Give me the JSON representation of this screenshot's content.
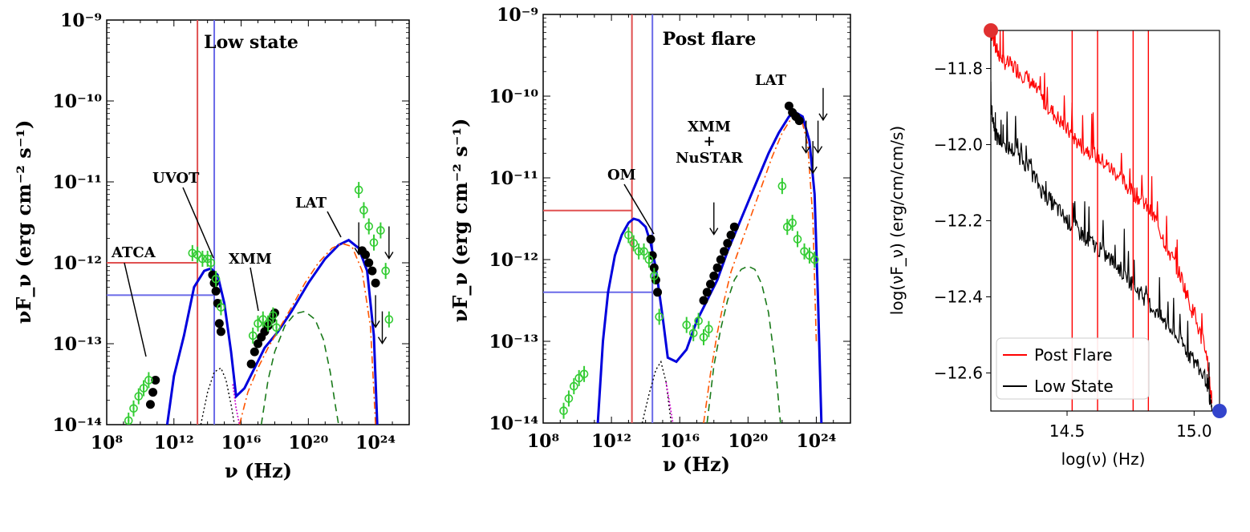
{
  "colors": {
    "model_total": "#0000dd",
    "sync_line": "#e05050",
    "peak_line": "#6a6ae8",
    "archival": "#33cc33",
    "ssc": "#ff5500",
    "ec": "#1a7a1a",
    "disk": "#000000",
    "host": "#cc00cc",
    "post_flare": "#ff0000",
    "low_state": "#000000",
    "marker_start": "#e03030",
    "marker_end": "#3344cc"
  },
  "chart_data": [
    {
      "type": "scatter",
      "panel": "left",
      "title": "Low state",
      "xlabel": "ν (Hz)",
      "ylabel": "νF_ν (erg cm⁻² s⁻¹)",
      "xscale": "log",
      "yscale": "log",
      "xlim": [
        100000000,
        1e+26
      ],
      "ylim": [
        1e-14,
        1e-09
      ],
      "x_tick_labels": [
        "10^8",
        "10^12",
        "10^16",
        "10^20",
        "10^24"
      ],
      "y_tick_labels": [
        "10^-14",
        "10^-13",
        "10^-12",
        "10^-11",
        "10^-10",
        "10^-9"
      ],
      "annotations": [
        "ATCA",
        "UVOT",
        "XMM",
        "LAT"
      ],
      "reference_lines": {
        "sync_peak_log_nu": 13.4,
        "sync_peak_log_flux": -12.0,
        "crossing_log_nu": 14.4,
        "crossing_log_flux": -12.4
      },
      "series": [
        {
          "name": "SED model (total)",
          "log_nu": [
            11.6,
            12.0,
            12.6,
            13.2,
            13.8,
            14.2,
            14.6,
            15.0,
            15.4,
            15.7,
            16.2,
            16.8,
            17.4,
            18.2,
            19.0,
            20.0,
            21.0,
            21.8,
            22.4,
            23.0,
            23.5,
            23.9,
            24.1
          ],
          "log_flux": [
            -14.0,
            -13.4,
            -12.9,
            -12.3,
            -12.1,
            -12.07,
            -12.15,
            -12.5,
            -13.1,
            -13.65,
            -13.55,
            -13.3,
            -13.05,
            -12.85,
            -12.6,
            -12.25,
            -11.95,
            -11.78,
            -11.72,
            -11.82,
            -12.1,
            -12.9,
            -14.0
          ]
        },
        {
          "name": "SSC (dash-dot)",
          "log_nu": [
            15.9,
            16.4,
            17.0,
            17.6,
            18.3,
            19.0,
            19.8,
            20.6,
            21.4,
            22.0,
            22.6,
            23.2,
            23.7,
            24.0
          ],
          "log_flux": [
            -14.0,
            -13.6,
            -13.3,
            -13.05,
            -12.8,
            -12.55,
            -12.25,
            -12.0,
            -11.82,
            -11.76,
            -11.8,
            -12.1,
            -12.8,
            -14.0
          ]
        },
        {
          "name": "EC (dashed)",
          "log_nu": [
            17.2,
            17.6,
            18.0,
            18.6,
            19.2,
            19.8,
            20.4,
            20.9,
            21.3,
            21.6,
            21.8
          ],
          "log_flux": [
            -14.0,
            -13.45,
            -13.1,
            -12.78,
            -12.63,
            -12.6,
            -12.7,
            -12.95,
            -13.35,
            -13.75,
            -14.0
          ]
        },
        {
          "name": "Disk (dotted)",
          "log_nu": [
            13.6,
            14.0,
            14.4,
            14.8,
            15.1,
            15.4,
            15.6
          ],
          "log_flux": [
            -14.0,
            -13.6,
            -13.35,
            -13.3,
            -13.45,
            -13.75,
            -14.0
          ]
        },
        {
          "name": "Host (dotted magenta)",
          "log_nu": [
            15.5,
            15.7,
            15.9
          ],
          "log_flux": [
            -13.5,
            -13.8,
            -14.0
          ]
        },
        {
          "name": "Observed (black)",
          "log_nu": [
            10.6,
            10.75,
            10.9,
            14.3,
            14.4,
            14.5,
            14.6,
            14.7,
            14.8,
            16.6,
            16.8,
            17.0,
            17.2,
            17.4,
            17.6,
            17.8,
            18.0,
            23.2,
            23.4,
            23.6,
            23.8,
            24.0
          ],
          "log_flux": [
            -13.75,
            -13.6,
            -13.45,
            -12.15,
            -12.25,
            -12.35,
            -12.5,
            -12.75,
            -12.85,
            -13.25,
            -13.1,
            -13.0,
            -12.92,
            -12.85,
            -12.78,
            -12.7,
            -12.62,
            -11.85,
            -11.9,
            -12.0,
            -12.1,
            -12.25
          ]
        },
        {
          "name": "Archival (green)",
          "log_nu": [
            9.3,
            9.6,
            9.9,
            10.2,
            10.5,
            13.1,
            13.4,
            13.7,
            14.0,
            14.2,
            14.5,
            14.8,
            16.7,
            17.0,
            17.3,
            17.6,
            17.9,
            18.1,
            23.0,
            23.3,
            23.6,
            23.9,
            24.3,
            24.6,
            24.8
          ],
          "log_flux": [
            -13.95,
            -13.8,
            -13.65,
            -13.55,
            -13.45,
            -11.88,
            -11.9,
            -11.95,
            -11.95,
            -12.0,
            -12.2,
            -12.55,
            -12.9,
            -12.75,
            -12.7,
            -12.75,
            -12.65,
            -12.8,
            -11.1,
            -11.35,
            -11.55,
            -11.75,
            -11.6,
            -12.1,
            -12.7
          ]
        },
        {
          "name": "Upper limits (LAT)",
          "log_nu": [
            23.0,
            24.0,
            24.4,
            24.8
          ],
          "log_flux": [
            -11.5,
            -12.4,
            -12.6,
            -11.55
          ]
        }
      ]
    },
    {
      "type": "scatter",
      "panel": "middle",
      "title": "Post flare",
      "xlabel": "ν (Hz)",
      "ylabel": "νF_ν (erg cm⁻² s⁻¹)",
      "xscale": "log",
      "yscale": "log",
      "xlim": [
        100000000,
        1e+26
      ],
      "ylim": [
        1e-14,
        1e-09
      ],
      "x_tick_labels": [
        "10^8",
        "10^12",
        "10^16",
        "10^20",
        "10^24"
      ],
      "y_tick_labels": [
        "10^-14",
        "10^-13",
        "10^-12",
        "10^-11",
        "10^-10",
        "10^-9"
      ],
      "annotations": [
        "OM",
        "XMM",
        "+",
        "NuSTAR",
        "LAT"
      ],
      "reference_lines": {
        "sync_peak_log_nu": 13.2,
        "sync_peak_log_flux": -11.4,
        "crossing_log_nu": 14.4,
        "crossing_log_flux": -12.4
      },
      "series": [
        {
          "name": "SED model (total)",
          "log_nu": [
            11.2,
            11.5,
            11.8,
            12.2,
            12.6,
            13.0,
            13.3,
            13.6,
            14.0,
            14.3,
            14.6,
            15.0,
            15.3,
            15.8,
            16.4,
            17.0,
            17.6,
            18.2,
            18.8,
            19.4,
            20.0,
            20.6,
            21.2,
            21.8,
            22.4,
            22.8,
            23.2,
            23.6,
            23.9,
            24.1,
            24.3
          ],
          "log_flux": [
            -14.0,
            -13.0,
            -12.4,
            -11.95,
            -11.7,
            -11.55,
            -11.5,
            -11.52,
            -11.6,
            -11.8,
            -12.1,
            -12.7,
            -13.2,
            -13.25,
            -13.1,
            -12.75,
            -12.5,
            -12.25,
            -11.9,
            -11.6,
            -11.3,
            -11.0,
            -10.7,
            -10.45,
            -10.25,
            -10.2,
            -10.25,
            -10.55,
            -11.2,
            -12.5,
            -14.0
          ]
        },
        {
          "name": "SSC (dash-dot)",
          "log_nu": [
            17.4,
            17.8,
            18.2,
            18.6,
            19.0,
            19.6,
            20.2,
            20.8,
            21.4,
            22.0,
            22.6,
            23.1,
            23.5,
            23.8,
            24.0
          ],
          "log_flux": [
            -14.0,
            -13.4,
            -12.9,
            -12.5,
            -12.15,
            -11.8,
            -11.45,
            -11.1,
            -10.75,
            -10.45,
            -10.25,
            -10.25,
            -10.6,
            -11.5,
            -13.0
          ]
        },
        {
          "name": "EC (dashed)",
          "log_nu": [
            17.6,
            18.0,
            18.4,
            18.8,
            19.2,
            19.6,
            20.0,
            20.4,
            20.8,
            21.2,
            21.6,
            21.9
          ],
          "log_flux": [
            -14.0,
            -13.3,
            -12.85,
            -12.5,
            -12.25,
            -12.12,
            -12.08,
            -12.12,
            -12.3,
            -12.65,
            -13.3,
            -14.0
          ]
        },
        {
          "name": "Disk (dotted)",
          "log_nu": [
            13.8,
            14.2,
            14.6,
            14.9,
            15.2,
            15.5
          ],
          "log_flux": [
            -14.0,
            -13.65,
            -13.35,
            -13.25,
            -13.5,
            -14.0
          ]
        },
        {
          "name": "Host (dotted magenta)",
          "log_nu": [
            15.2,
            15.4,
            15.6
          ],
          "log_flux": [
            -13.5,
            -13.75,
            -14.0
          ]
        },
        {
          "name": "Observed (black)",
          "log_nu": [
            14.3,
            14.4,
            14.5,
            14.6,
            14.7,
            17.4,
            17.6,
            17.8,
            18.0,
            18.2,
            18.4,
            18.6,
            18.8,
            19.0,
            19.2,
            22.4,
            22.6,
            22.8,
            23.0
          ],
          "log_flux": [
            -11.75,
            -11.95,
            -12.1,
            -12.25,
            -12.4,
            -12.5,
            -12.4,
            -12.3,
            -12.2,
            -12.1,
            -12.0,
            -11.9,
            -11.8,
            -11.7,
            -11.6,
            -10.12,
            -10.2,
            -10.25,
            -10.3
          ]
        },
        {
          "name": "Archival (green)",
          "log_nu": [
            9.2,
            9.5,
            9.8,
            10.1,
            10.4,
            13.0,
            13.3,
            13.6,
            13.9,
            14.2,
            14.5,
            14.8,
            16.4,
            16.8,
            17.1,
            17.4,
            17.7,
            22.0,
            22.3,
            22.6,
            22.9,
            23.3,
            23.6,
            23.9
          ],
          "log_flux": [
            -13.85,
            -13.7,
            -13.55,
            -13.45,
            -13.4,
            -11.7,
            -11.8,
            -11.9,
            -11.9,
            -12.0,
            -12.2,
            -12.7,
            -12.8,
            -12.9,
            -12.75,
            -12.95,
            -12.85,
            -11.1,
            -11.6,
            -11.55,
            -11.75,
            -11.9,
            -11.95,
            -12.0
          ]
        },
        {
          "name": "Upper limits (LAT)",
          "log_nu": [
            18.0,
            23.4,
            23.8,
            24.1,
            24.4
          ],
          "log_flux": [
            -11.3,
            -10.3,
            -10.55,
            -10.3,
            -9.9
          ]
        }
      ]
    },
    {
      "type": "line",
      "panel": "right",
      "xlabel": "log(ν) (Hz)",
      "ylabel": "log(νF_ν) (erg/cm/cm/s)",
      "xlim": [
        14.2,
        15.1
      ],
      "ylim": [
        -12.7,
        -11.7
      ],
      "x_ticks": [
        14.5,
        15.0
      ],
      "x_tick_labels": [
        "14.5",
        "15.0"
      ],
      "y_ticks": [
        -12.6,
        -12.4,
        -12.2,
        -12.0,
        -11.8
      ],
      "y_tick_labels": [
        "−12.6",
        "−12.4",
        "−12.2",
        "−12.0",
        "−11.8"
      ],
      "legend": [
        "Post Flare",
        "Low State"
      ],
      "legend_position": "lower-left",
      "marker_points": [
        {
          "x": 14.2,
          "y": -11.7
        },
        {
          "x": 15.1,
          "y": -12.7
        }
      ],
      "series": [
        {
          "name": "Post Flare",
          "x": [
            14.2,
            14.22,
            14.25,
            14.3,
            14.35,
            14.4,
            14.45,
            14.5,
            14.55,
            14.6,
            14.65,
            14.7,
            14.75,
            14.8,
            14.85,
            14.9,
            14.95,
            15.0,
            15.05,
            15.07
          ],
          "y": [
            -11.7,
            -11.75,
            -11.78,
            -11.8,
            -11.83,
            -11.88,
            -11.92,
            -11.96,
            -12.0,
            -12.02,
            -12.05,
            -12.08,
            -12.12,
            -12.15,
            -12.2,
            -12.28,
            -12.35,
            -12.45,
            -12.55,
            -12.68
          ]
        },
        {
          "name": "Low State",
          "x": [
            14.2,
            14.22,
            14.25,
            14.3,
            14.35,
            14.4,
            14.45,
            14.5,
            14.55,
            14.6,
            14.65,
            14.7,
            14.75,
            14.8,
            14.85,
            14.9,
            14.95,
            15.0,
            15.05,
            15.07
          ],
          "y": [
            -11.9,
            -11.98,
            -12.0,
            -12.02,
            -12.06,
            -12.12,
            -12.16,
            -12.2,
            -12.23,
            -12.26,
            -12.29,
            -12.32,
            -12.36,
            -12.4,
            -12.44,
            -12.48,
            -12.52,
            -12.57,
            -12.62,
            -12.7
          ]
        }
      ]
    }
  ]
}
